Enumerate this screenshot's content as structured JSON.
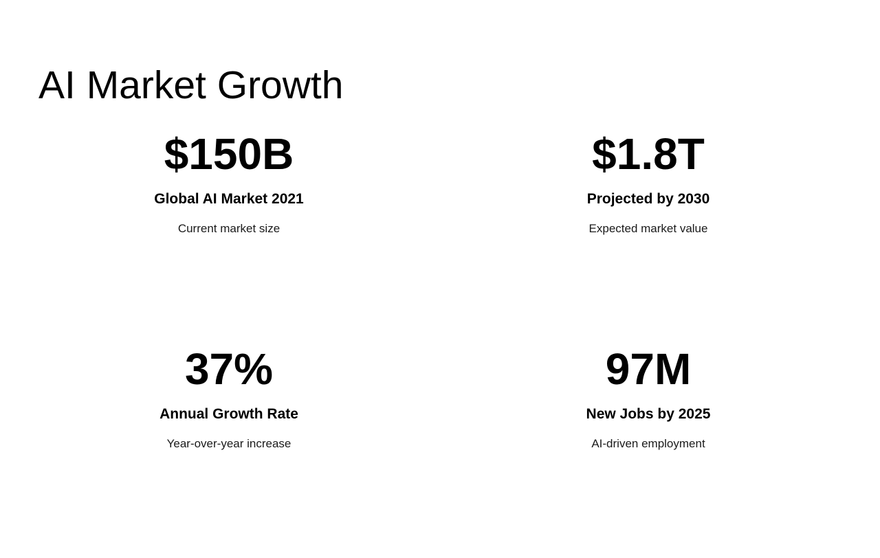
{
  "slide": {
    "title": "AI Market Growth",
    "stats": [
      {
        "value": "$150B",
        "label": "Global AI Market 2021",
        "description": "Current market size"
      },
      {
        "value": "$1.8T",
        "label": "Projected by 2030",
        "description": "Expected market value"
      },
      {
        "value": "37%",
        "label": "Annual Growth Rate",
        "description": "Year-over-year increase"
      },
      {
        "value": "97M",
        "label": "New Jobs by 2025",
        "description": "AI-driven employment"
      }
    ],
    "colors": {
      "background": "#ffffff",
      "text_primary": "#000000",
      "text_secondary": "#1a1a1a"
    }
  }
}
